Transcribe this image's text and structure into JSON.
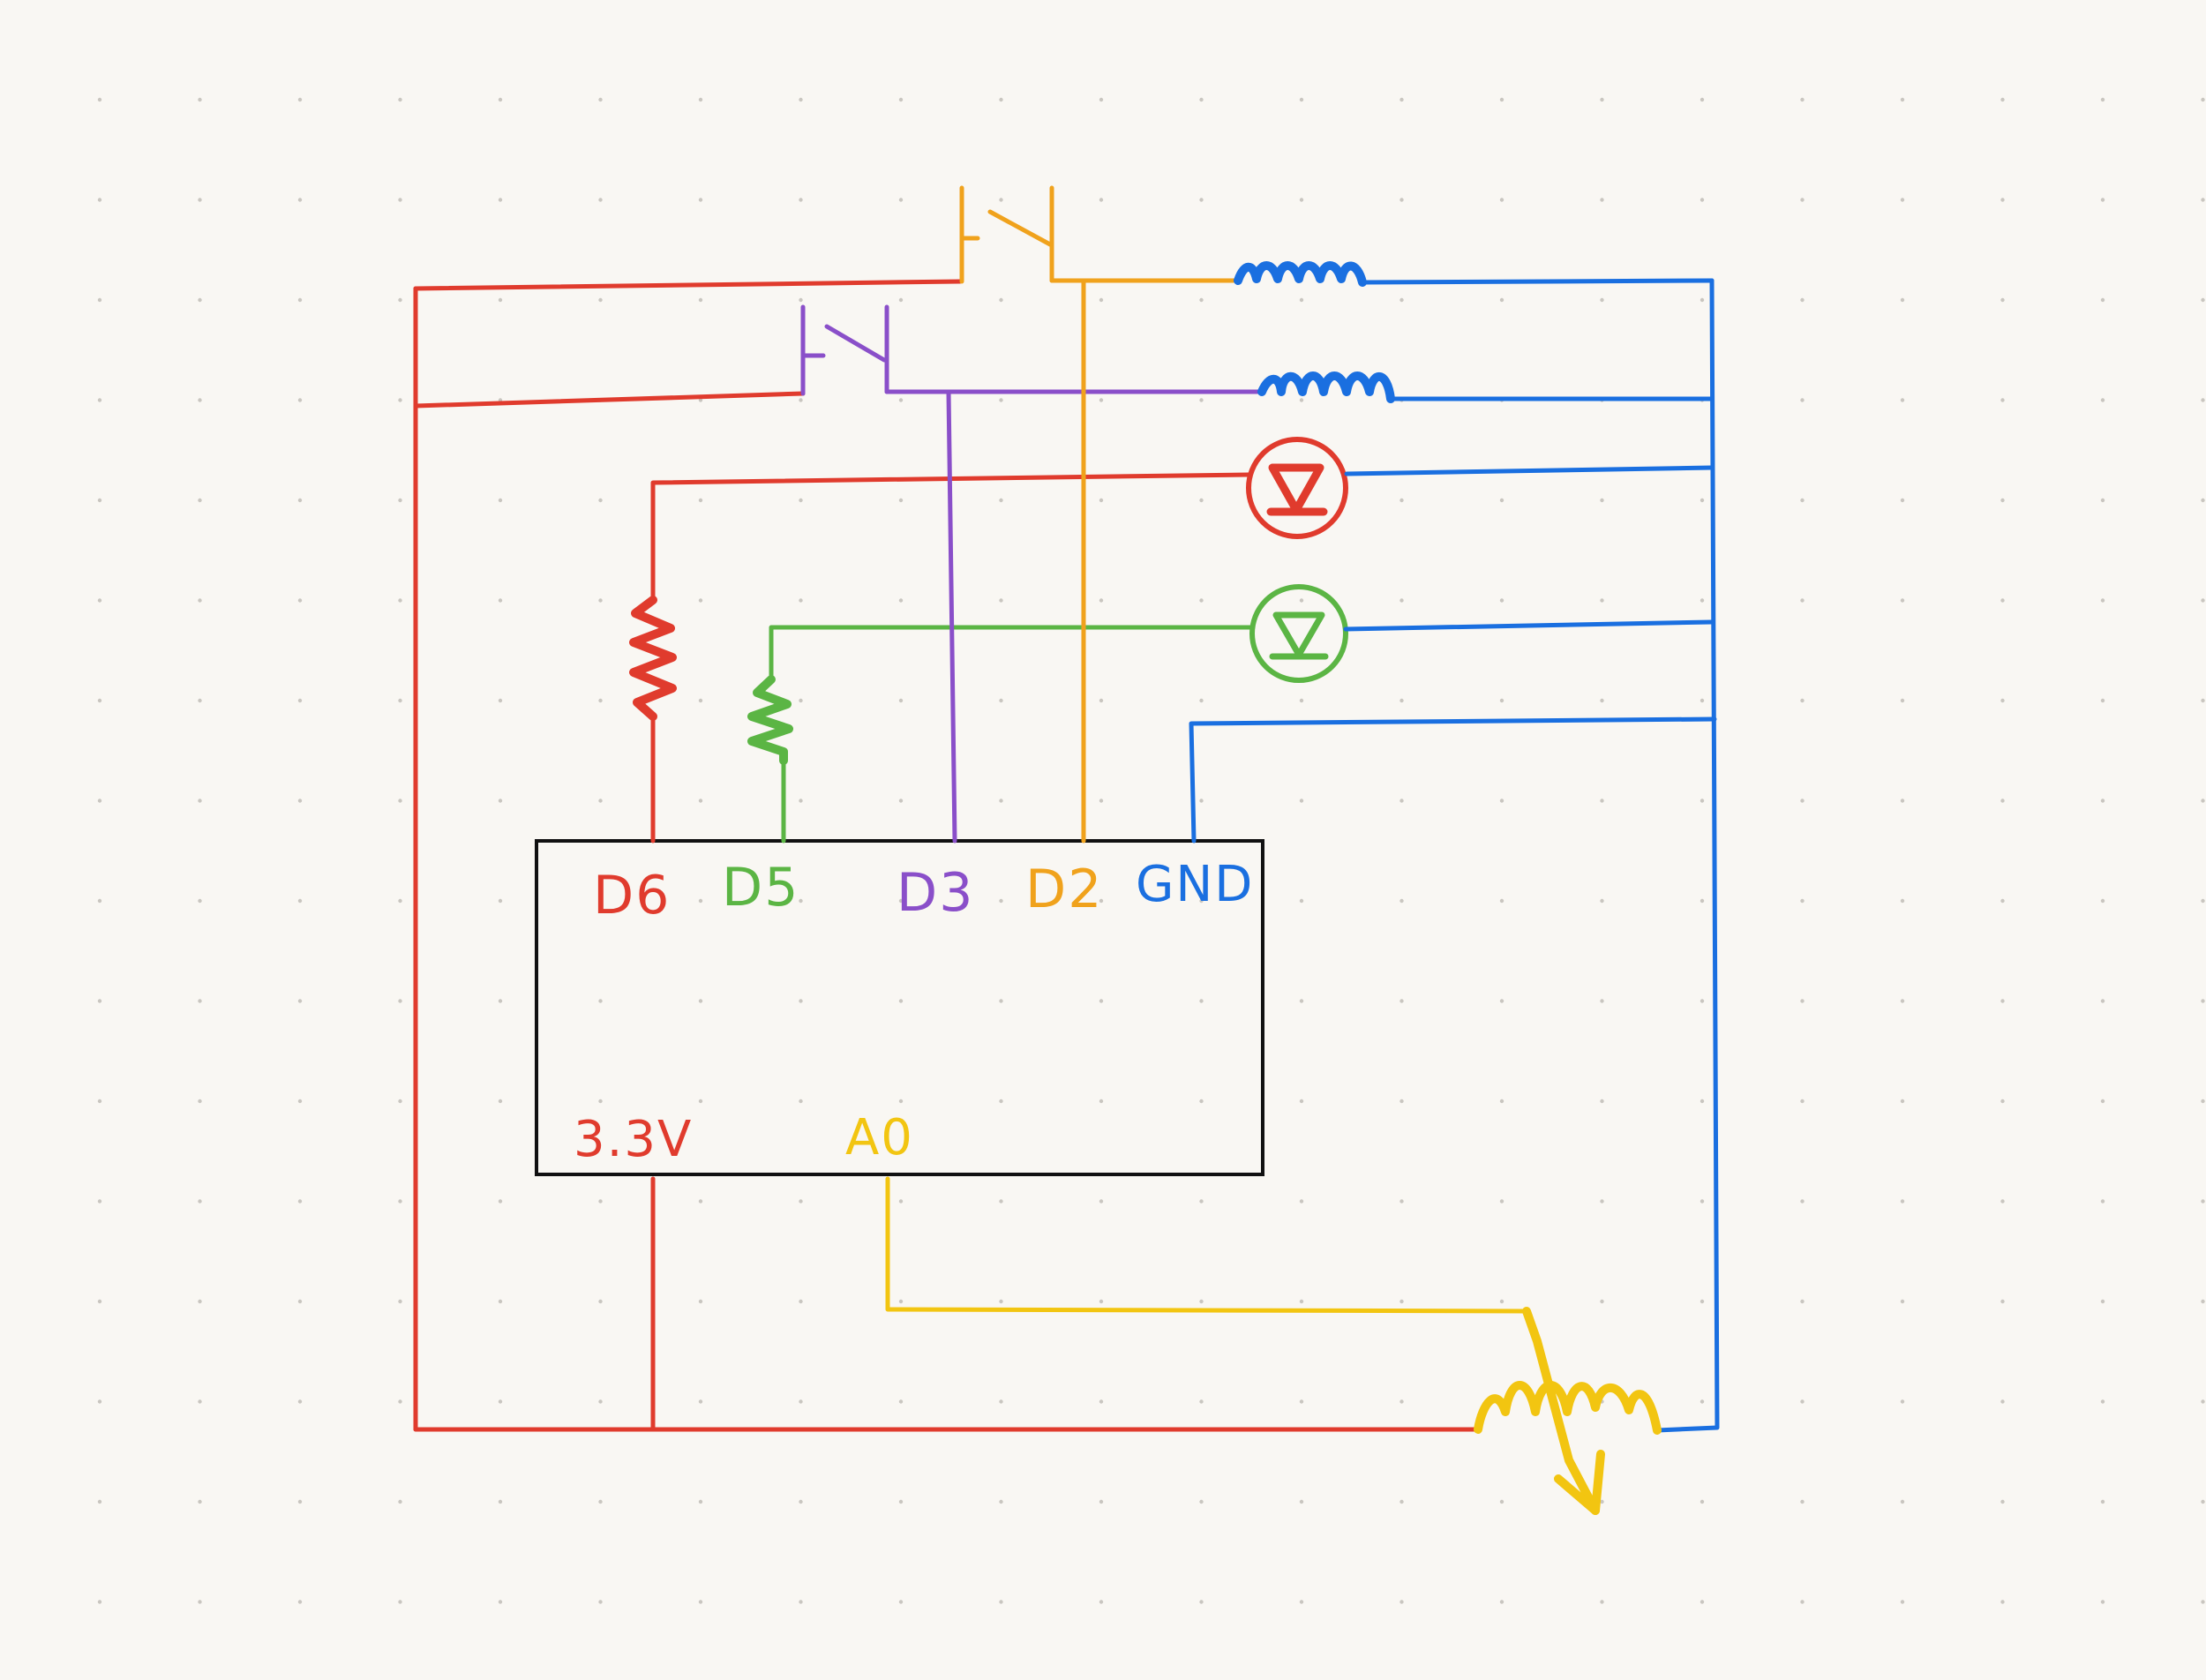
{
  "colors": {
    "background": "#f9f7f3",
    "grid_dot": "#c9c6c0",
    "power_red": "#e03b2d",
    "green": "#5bb544",
    "purple": "#8a4fc9",
    "orange": "#f0a21c",
    "blue": "#1a6fe0",
    "yellow": "#f2c511",
    "board_outline": "#111111"
  },
  "board": {
    "pin_labels": {
      "d6": "D6",
      "d5": "D5",
      "d3": "D3",
      "d2": "D2",
      "gnd": "GND",
      "v33": "3.3V",
      "a0": "A0"
    }
  },
  "components": [
    {
      "id": "push-button-d2",
      "type": "push-button",
      "wire": "D2"
    },
    {
      "id": "push-button-d3",
      "type": "push-button",
      "wire": "D3"
    },
    {
      "id": "pull-down-resistor-d2",
      "type": "resistor",
      "wire": "D2"
    },
    {
      "id": "pull-down-resistor-d3",
      "type": "resistor",
      "wire": "D3"
    },
    {
      "id": "led-red",
      "type": "led",
      "wire": "D6"
    },
    {
      "id": "led-green",
      "type": "led",
      "wire": "D5"
    },
    {
      "id": "resistor-d6",
      "type": "resistor",
      "wire": "D6"
    },
    {
      "id": "resistor-d5",
      "type": "resistor",
      "wire": "D5"
    },
    {
      "id": "potentiometer",
      "type": "potentiometer",
      "wire": "A0"
    }
  ],
  "icons": [
    "push-button-icon",
    "resistor-icon",
    "led-icon",
    "potentiometer-icon"
  ]
}
